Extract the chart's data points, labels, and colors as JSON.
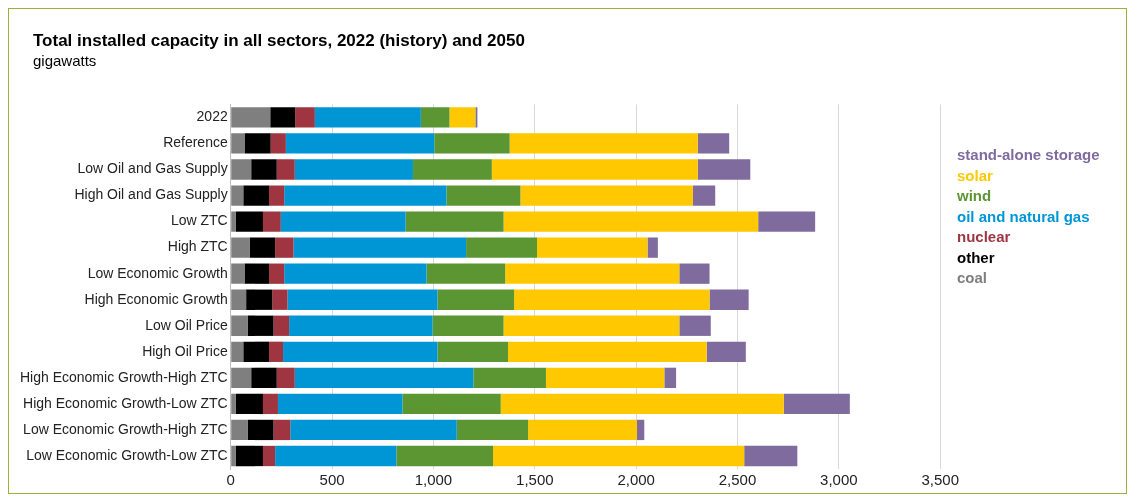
{
  "chart_data": {
    "type": "bar",
    "title": "Total installed capacity in all sectors, 2022 (history) and 2050",
    "subtitle": "gigawatts",
    "orientation": "horizontal",
    "stacked": true,
    "grid": "x",
    "legend": "right",
    "categories": [
      "2022",
      "Reference",
      "Low Oil and Gas Supply",
      "High Oil and Gas Supply",
      "Low ZTC",
      "High ZTC",
      "Low Economic Growth",
      "High Economic Growth",
      "Low Oil Price",
      "High Oil Price",
      "High Economic Growth-High ZTC",
      "High Economic Growth-Low ZTC",
      "Low Economic Growth-High ZTC",
      "Low Economic Growth-Low ZTC"
    ],
    "xlim": [
      0,
      3500
    ],
    "xticks": [
      0,
      {
        "value": 500,
        "label": "500"
      },
      {
        "value": 1000,
        "label": "1,000"
      },
      {
        "value": 1500,
        "label": "1,500"
      },
      {
        "value": 2000,
        "label": "2,000"
      },
      {
        "value": 2500,
        "label": "2,500"
      },
      {
        "value": 3000,
        "label": "3,000"
      },
      {
        "value": 3500,
        "label": "3,500"
      }
    ],
    "series": [
      {
        "name": "coal",
        "color": "#7f7f7f",
        "values": [
          195,
          68,
          101,
          62,
          24,
          93,
          68,
          76,
          85,
          62,
          101,
          24,
          85,
          24
        ]
      },
      {
        "name": "other",
        "color": "#000000",
        "values": [
          123,
          129,
          126,
          127,
          135,
          126,
          121,
          129,
          126,
          127,
          126,
          135,
          126,
          135
        ]
      },
      {
        "name": "nuclear",
        "color": "#9e3540",
        "values": [
          97,
          75,
          89,
          75,
          88,
          91,
          75,
          75,
          77,
          69,
          89,
          74,
          83,
          60
        ]
      },
      {
        "name": "oil and natural gas",
        "color": "#0096d6",
        "values": [
          523,
          732,
          583,
          800,
          616,
          851,
          702,
          740,
          708,
          762,
          881,
          614,
          821,
          598
        ]
      },
      {
        "name": "wind",
        "color": "#5b9632",
        "values": [
          141,
          372,
          389,
          365,
          483,
          350,
          388,
          378,
          350,
          348,
          358,
          485,
          352,
          477
        ]
      },
      {
        "name": "solar",
        "color": "#ffc800",
        "values": [
          128,
          928,
          1016,
          851,
          1256,
          545,
          859,
          964,
          867,
          980,
          584,
          1396,
          537,
          1239
        ]
      },
      {
        "name": "stand-alone storage",
        "color": "#7f6b9e",
        "values": [
          4,
          155,
          259,
          110,
          281,
          51,
          149,
          193,
          155,
          193,
          58,
          326,
          36,
          262
        ]
      }
    ]
  }
}
